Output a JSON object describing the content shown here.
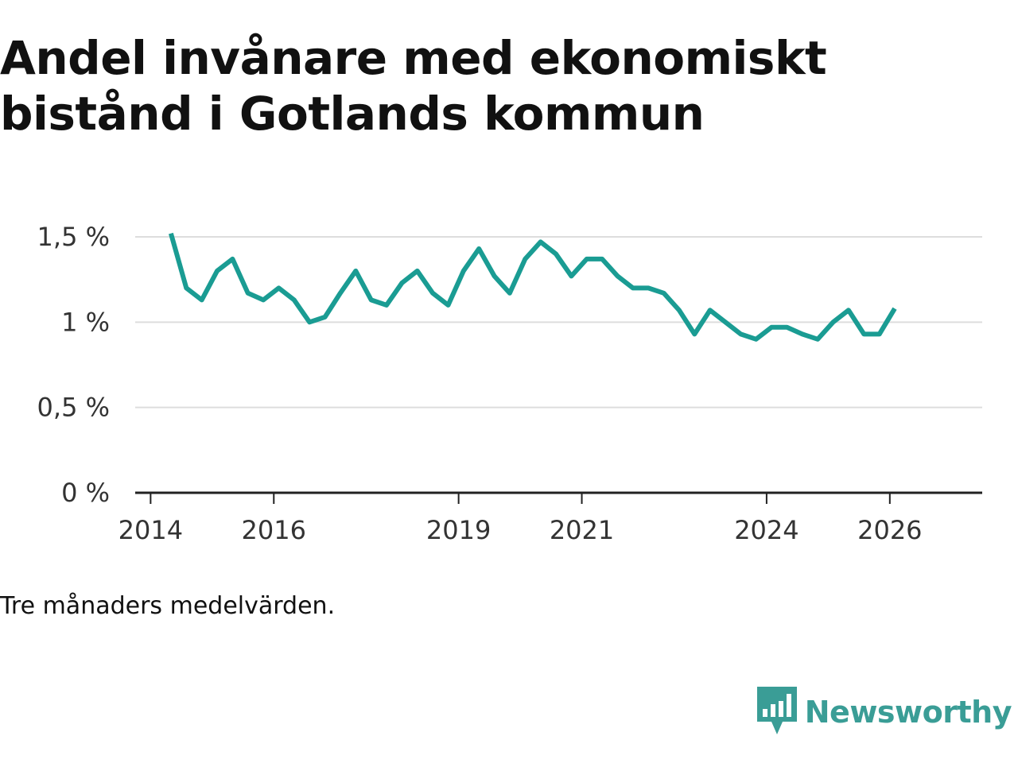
{
  "chart_data": {
    "type": "line",
    "title": "Andel invånare med ekonomiskt bistånd i Gotlands kommun",
    "caption": "Tre månaders medelvärden.",
    "xlabel": "",
    "ylabel": "",
    "ylim": [
      0,
      1.5
    ],
    "yticks": [
      {
        "value": 0,
        "label": "0 %"
      },
      {
        "value": 0.5,
        "label": "0,5 %"
      },
      {
        "value": 1,
        "label": "1 %"
      },
      {
        "value": 1.5,
        "label": "1,5 %"
      }
    ],
    "xlim": [
      2013.75,
      2027.5
    ],
    "xticks": [
      {
        "value": 2014,
        "label": "2014"
      },
      {
        "value": 2016,
        "label": "2016"
      },
      {
        "value": 2019,
        "label": "2019"
      },
      {
        "value": 2021,
        "label": "2021"
      },
      {
        "value": 2024,
        "label": "2024"
      },
      {
        "value": 2026,
        "label": "2026"
      }
    ],
    "grid": true,
    "series": [
      {
        "name": "Andel invånare med ekonomiskt bistånd",
        "color": "#1a9c93",
        "x": [
          2014.33,
          2014.58,
          2014.83,
          2015.08,
          2015.33,
          2015.58,
          2015.83,
          2016.08,
          2016.33,
          2016.58,
          2016.83,
          2017.08,
          2017.33,
          2017.58,
          2017.83,
          2018.08,
          2018.33,
          2018.58,
          2018.83,
          2019.08,
          2019.33,
          2019.58,
          2019.83,
          2020.08,
          2020.33,
          2020.58,
          2020.83,
          2021.08,
          2021.33,
          2021.58,
          2021.83,
          2022.08,
          2022.33,
          2022.58,
          2022.83,
          2023.08,
          2023.33,
          2023.58,
          2023.83,
          2024.08,
          2024.33,
          2024.58,
          2024.83,
          2025.08,
          2025.33,
          2025.58,
          2025.83,
          2026.08
        ],
        "values": [
          1.52,
          1.2,
          1.13,
          1.3,
          1.37,
          1.17,
          1.13,
          1.2,
          1.13,
          1.0,
          1.03,
          1.17,
          1.3,
          1.13,
          1.1,
          1.23,
          1.3,
          1.17,
          1.1,
          1.3,
          1.43,
          1.27,
          1.17,
          1.37,
          1.47,
          1.4,
          1.27,
          1.37,
          1.37,
          1.27,
          1.2,
          1.2,
          1.17,
          1.07,
          0.93,
          1.07,
          1.0,
          0.93,
          0.9,
          0.97,
          0.97,
          0.93,
          0.9,
          1.0,
          1.07,
          0.93,
          0.93,
          1.08
        ]
      }
    ]
  },
  "brand": {
    "name": "Newsworthy",
    "color": "#3a9d96"
  }
}
